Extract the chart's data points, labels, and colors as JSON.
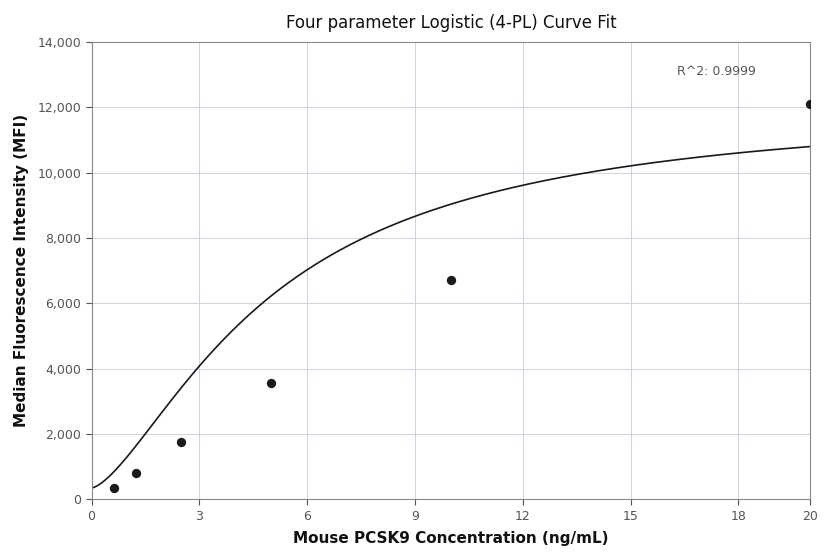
{
  "title": "Four parameter Logistic (4-PL) Curve Fit",
  "xlabel": "Mouse PCSK9 Concentration (ng/mL)",
  "ylabel": "Median Fluorescence Intensity (MFI)",
  "r_squared": "R^2: 0.9999",
  "data_points_x": [
    0.625,
    1.25,
    2.5,
    5.0,
    10.0,
    20.0
  ],
  "data_points_y": [
    350,
    800,
    1750,
    3550,
    6700,
    12100
  ],
  "xlim": [
    0,
    20
  ],
  "ylim": [
    0,
    14000
  ],
  "xticks": [
    0,
    3,
    6,
    9,
    12,
    15,
    18,
    20
  ],
  "yticks": [
    0,
    2000,
    4000,
    6000,
    8000,
    10000,
    12000,
    14000
  ],
  "line_color": "#1a1a1a",
  "dot_color": "#1a1a1a",
  "background_color": "#ffffff",
  "grid_color": "#c8d4e8",
  "title_fontsize": 12,
  "axis_label_fontsize": 11,
  "tick_fontsize": 9,
  "annotation_fontsize": 9
}
